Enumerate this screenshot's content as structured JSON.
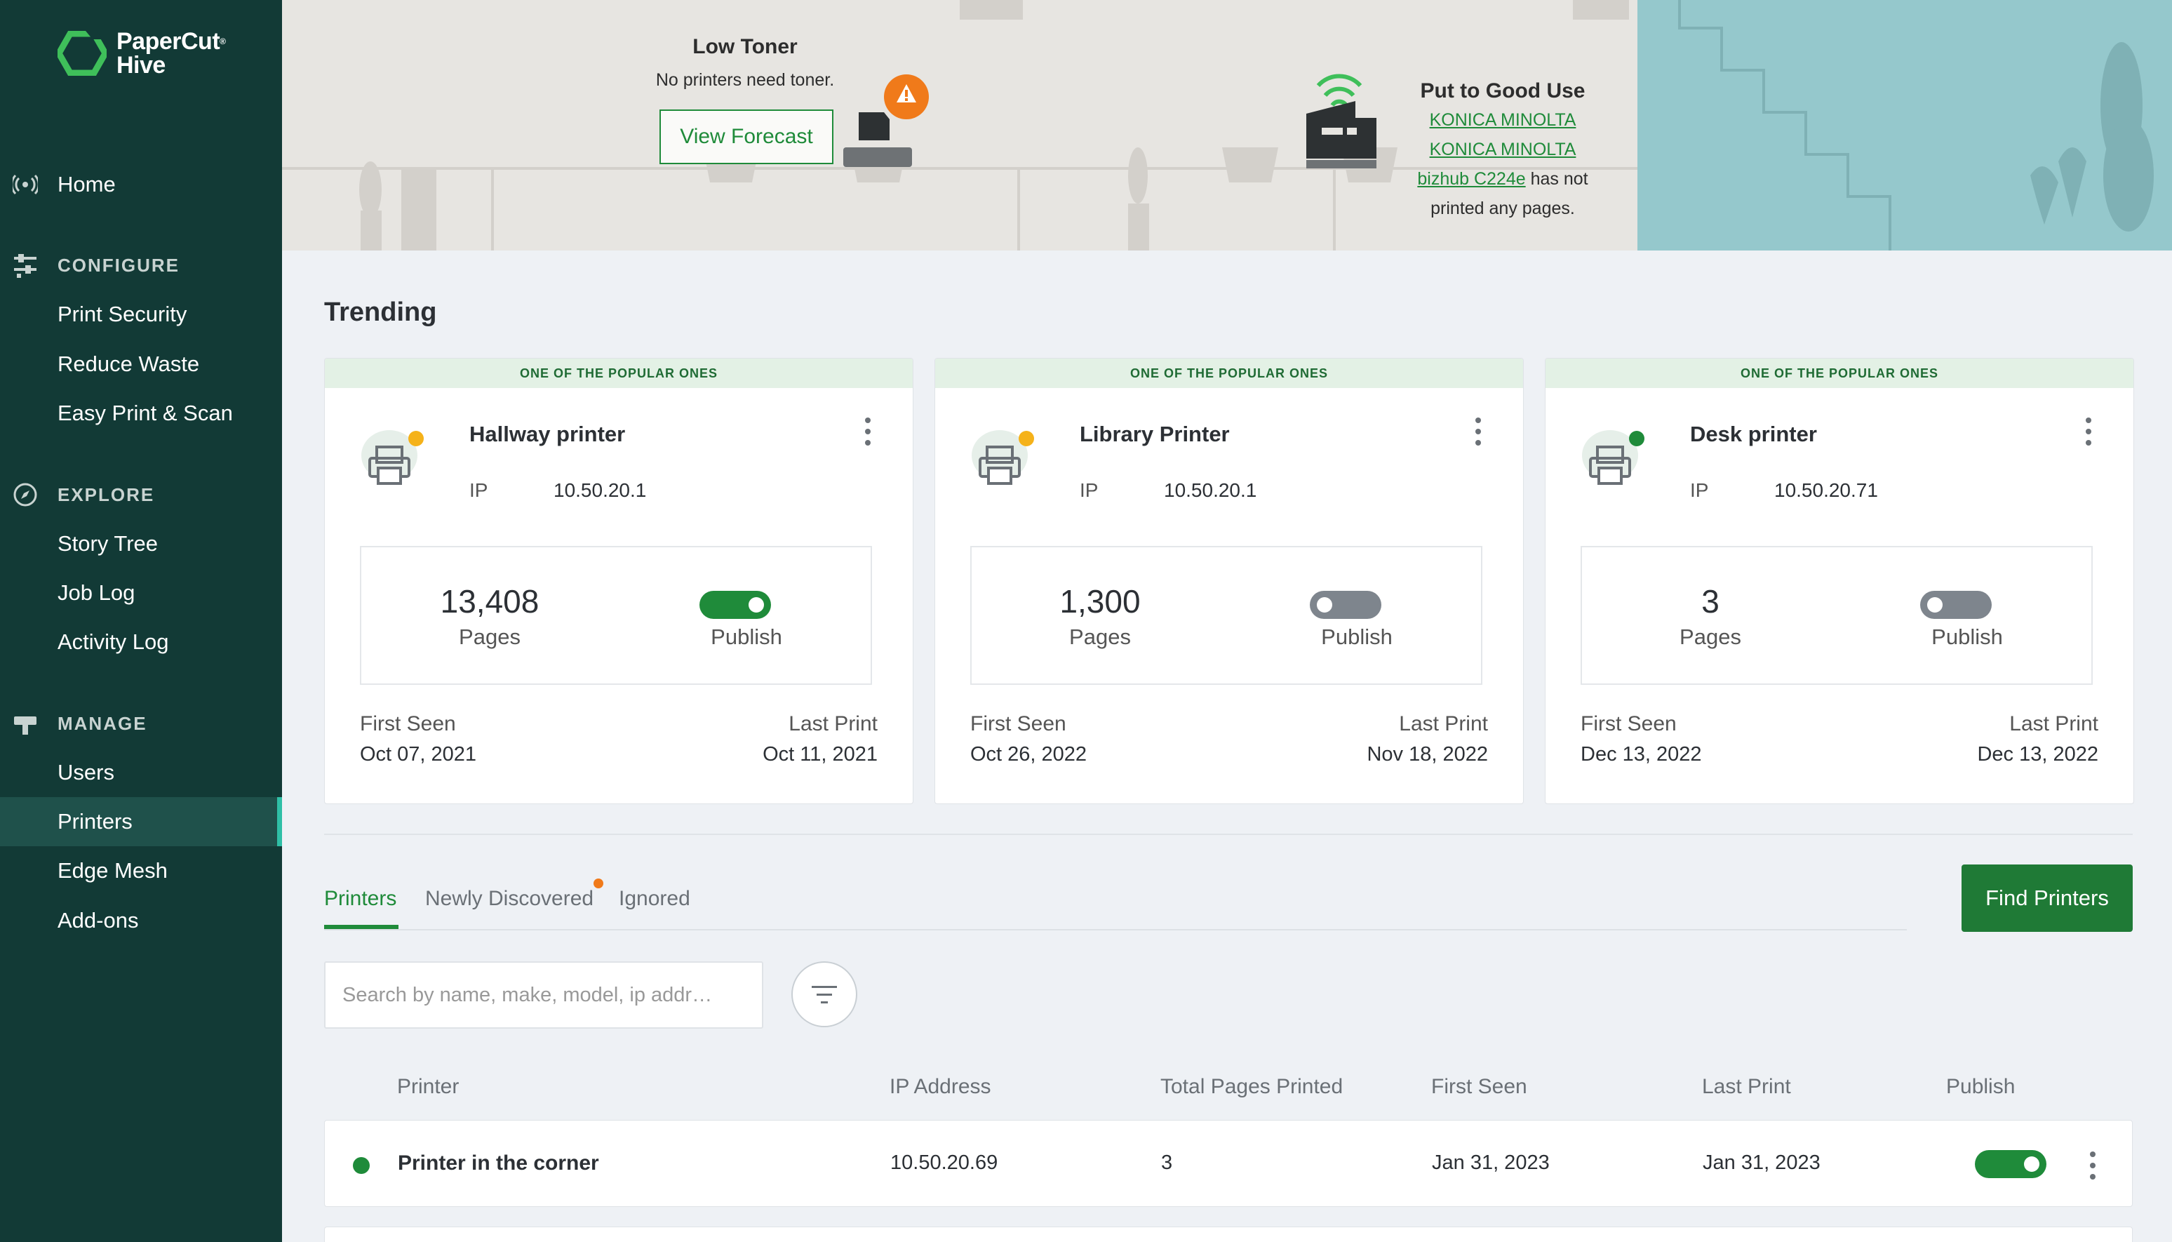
{
  "brand": {
    "line1": "PaperCut",
    "line2": "Hive",
    "mark": "®"
  },
  "sidebar": {
    "home": "Home",
    "configure": "CONFIGURE",
    "configure_items": [
      "Print Security",
      "Reduce Waste",
      "Easy Print & Scan"
    ],
    "explore": "EXPLORE",
    "explore_items": [
      "Story Tree",
      "Job Log",
      "Activity Log"
    ],
    "manage": "MANAGE",
    "manage_items": [
      "Users",
      "Printers",
      "Edge Mesh",
      "Add-ons"
    ],
    "active": "Printers"
  },
  "hero": {
    "low_toner_title": "Low Toner",
    "low_toner_text": "No printers need toner.",
    "forecast_button": "View Forecast",
    "good_use_title": "Put to Good Use",
    "good_use_link1": "KONICA MINOLTA",
    "good_use_link2": "KONICA MINOLTA",
    "good_use_link3": "bizhub C224e",
    "good_use_text1": "has not",
    "good_use_text2": "printed any pages."
  },
  "trending": {
    "title": "Trending",
    "cards": [
      {
        "banner": "ONE OF THE POPULAR ONES",
        "name": "Hallway printer",
        "ip_label": "IP",
        "ip": "10.50.20.1",
        "pages": "13,408",
        "pages_label": "Pages",
        "publish_label": "Publish",
        "publish": true,
        "status_color": "#f5b21a",
        "first_seen_label": "First Seen",
        "first_seen": "Oct 07, 2021",
        "last_print_label": "Last Print",
        "last_print": "Oct 11, 2021"
      },
      {
        "banner": "ONE OF THE POPULAR ONES",
        "name": "Library Printer",
        "ip_label": "IP",
        "ip": "10.50.20.1",
        "pages": "1,300",
        "pages_label": "Pages",
        "publish_label": "Publish",
        "publish": false,
        "status_color": "#f5b21a",
        "first_seen_label": "First Seen",
        "first_seen": "Oct 26, 2022",
        "last_print_label": "Last Print",
        "last_print": "Nov 18, 2022"
      },
      {
        "banner": "ONE OF THE POPULAR ONES",
        "name": "Desk printer",
        "ip_label": "IP",
        "ip": "10.50.20.71",
        "pages": "3",
        "pages_label": "Pages",
        "publish_label": "Publish",
        "publish": false,
        "status_color": "#1f8b3a",
        "first_seen_label": "First Seen",
        "first_seen": "Dec 13, 2022",
        "last_print_label": "Last Print",
        "last_print": "Dec 13, 2022"
      }
    ]
  },
  "tabs": {
    "printers": "Printers",
    "newly": "Newly Discovered",
    "ignored": "Ignored",
    "active": "Printers"
  },
  "find_button": "Find Printers",
  "search": {
    "placeholder": "Search by name, make, model, ip addr…"
  },
  "table": {
    "headers": {
      "printer": "Printer",
      "ip": "IP Address",
      "pages": "Total Pages Printed",
      "first": "First Seen",
      "last": "Last Print",
      "publish": "Publish"
    },
    "rows": [
      {
        "name": "Printer in the corner",
        "ip": "10.50.20.69",
        "pages": "3",
        "first": "Jan 31, 2023",
        "last": "Jan 31, 2023",
        "publish": true,
        "status_color": "#1f8b3a"
      }
    ]
  },
  "colors": {
    "sidebar": "#123a36",
    "accent": "#1f8b3a",
    "warning": "#f07a1a"
  }
}
